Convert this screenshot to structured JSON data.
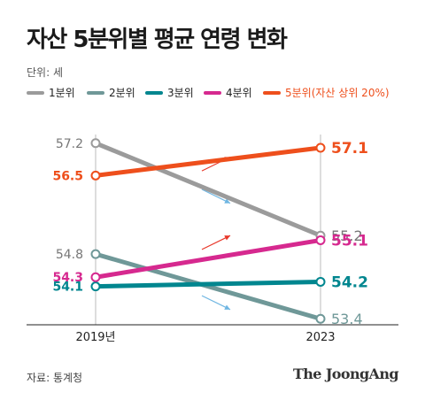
{
  "title": "자산 5분위별 평균 연령 변화",
  "unit_label": "단위: 세",
  "source": "자료: 통계청",
  "brand": "The JoongAng",
  "colors": {
    "axis": "#222222",
    "grid": "#bbbbbb",
    "arrow_red": "#e8382a",
    "arrow_blue": "#6fb6e2"
  },
  "chart_data": {
    "type": "line",
    "title": "자산 5분위별 평균 연령 변화",
    "unit": "세",
    "categories": [
      "2019년",
      "2023"
    ],
    "series": [
      {
        "name": "1분위",
        "values": [
          57.2,
          55.2
        ],
        "labels": [
          "57.2",
          "55.2"
        ],
        "color": "#9b9b9b"
      },
      {
        "name": "2분위",
        "values": [
          54.8,
          53.4
        ],
        "labels": [
          "54.8",
          "53.4"
        ],
        "color": "#6f9898"
      },
      {
        "name": "3분위",
        "values": [
          54.1,
          54.2
        ],
        "labels": [
          "54.1",
          "54.2"
        ],
        "color": "#00868f"
      },
      {
        "name": "4분위",
        "values": [
          54.3,
          55.1
        ],
        "labels": [
          "54.3",
          "55.1"
        ],
        "color": "#d6298f"
      },
      {
        "name": "5분위(자산 상위 20%)",
        "values": [
          56.5,
          57.1
        ],
        "labels": [
          "56.5",
          "57.1"
        ],
        "color": "#ee4f1c"
      }
    ],
    "ylim": [
      52.6,
      58.0
    ],
    "grid": false,
    "legend_position": "top",
    "trend_arrows": [
      {
        "color": "red",
        "direction": "up",
        "between": [
          56.6,
          56.9
        ]
      },
      {
        "color": "blue",
        "direction": "down",
        "between": [
          56.2,
          55.9
        ]
      },
      {
        "color": "red",
        "direction": "up",
        "between": [
          54.9,
          55.2
        ]
      },
      {
        "color": "blue",
        "direction": "down",
        "between": [
          53.9,
          53.6
        ]
      }
    ]
  }
}
